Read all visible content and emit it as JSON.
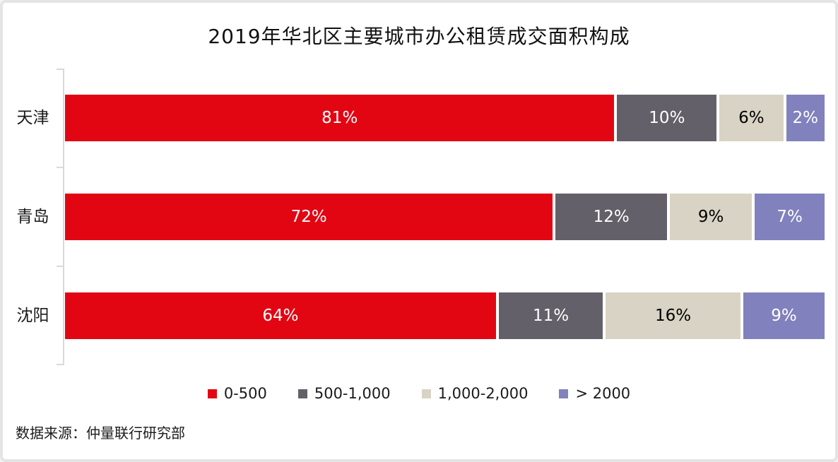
{
  "title": "2019年华北区主要城市办公租赁成交面积构成",
  "source": "数据来源：仲量联行研究部",
  "colors": {
    "background": "#ffffff",
    "frame_border": "#e4e4e4",
    "axis": "#d9d9d9"
  },
  "chart_data": {
    "type": "bar",
    "orientation": "horizontal",
    "stacked": true,
    "unit": "%",
    "title": "2019年华北区主要城市办公租赁成交面积构成",
    "categories": [
      "天津",
      "青岛",
      "沈阳"
    ],
    "series": [
      {
        "name": "0-500",
        "color": "#e20613",
        "label_color": "#ffffff",
        "values": [
          81,
          72,
          64
        ],
        "labels": [
          "81%",
          "72%",
          "64%"
        ]
      },
      {
        "name": "500-1,000",
        "color": "#646069",
        "label_color": "#ffffff",
        "values": [
          10,
          12,
          11
        ],
        "labels": [
          "10%",
          "12%",
          "11%"
        ]
      },
      {
        "name": "1,000-2,000",
        "color": "#d9d3c5",
        "label_color": "#000000",
        "values": [
          6,
          9,
          16
        ],
        "labels": [
          "6%",
          "9%",
          "16%"
        ]
      },
      {
        "name": "> 2000",
        "color": "#8181bd",
        "label_color": "#ffffff",
        "values": [
          2,
          7,
          9
        ],
        "labels": [
          "2%",
          "7%",
          "9%"
        ]
      }
    ],
    "xlim": [
      0,
      100
    ],
    "legend_position": "bottom",
    "grid": false
  }
}
